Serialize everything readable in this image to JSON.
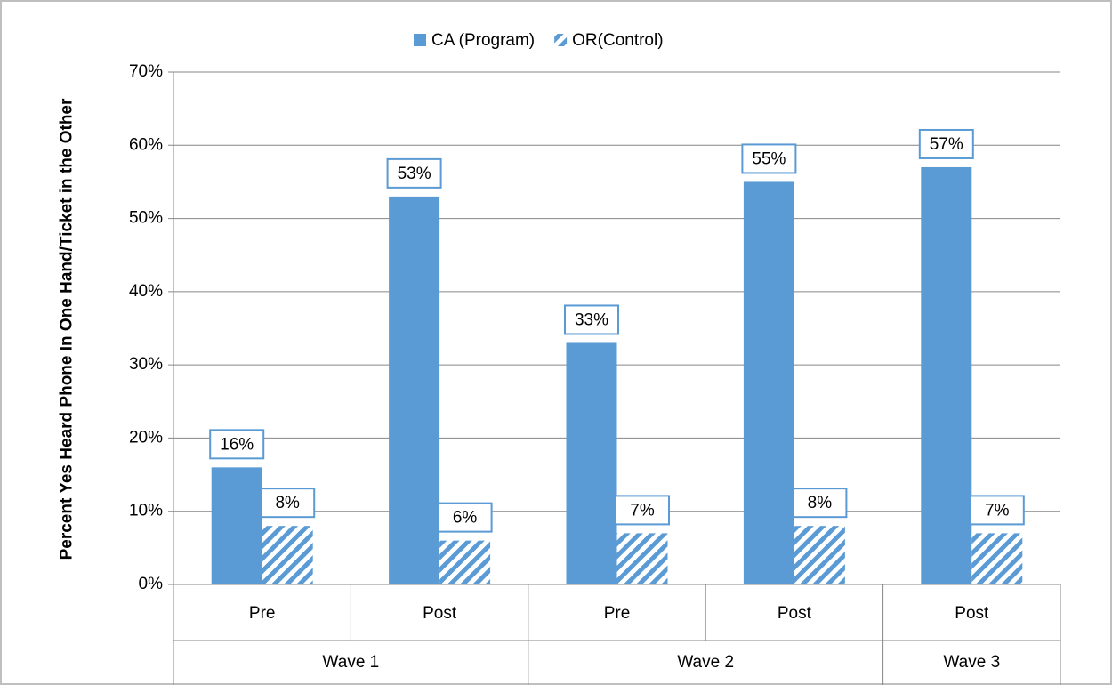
{
  "chart_data": {
    "type": "bar",
    "y_label": "Percent  Yes Heard Phone In One Hand/Ticket in the Other",
    "groups": [
      {
        "name": "Wave 1",
        "categories": [
          "Pre",
          "Post"
        ]
      },
      {
        "name": "Wave 2",
        "categories": [
          "Pre",
          "Post"
        ]
      },
      {
        "name": "Wave 3",
        "categories": [
          "Post"
        ]
      }
    ],
    "series": [
      {
        "name": "CA (Program)",
        "color": "#5b9bd5",
        "hatch": false,
        "values": [
          16,
          53,
          33,
          55,
          57
        ],
        "value_labels": [
          "16%",
          "53%",
          "33%",
          "55%",
          "57%"
        ]
      },
      {
        "name": "OR(Control)",
        "color": "#5b9bd5",
        "hatch": true,
        "values": [
          8,
          6,
          7,
          8,
          7
        ],
        "value_labels": [
          "8%",
          "6%",
          "7%",
          "8%",
          "7%"
        ]
      }
    ],
    "ylim": [
      0,
      70
    ],
    "yticks": [
      {
        "value": 0,
        "label": "0%"
      },
      {
        "value": 10,
        "label": "10%"
      },
      {
        "value": 20,
        "label": "20%"
      },
      {
        "value": 30,
        "label": "30%"
      },
      {
        "value": 40,
        "label": "40%"
      },
      {
        "value": 50,
        "label": "50%"
      },
      {
        "value": 60,
        "label": "60%"
      },
      {
        "value": 70,
        "label": "70%"
      }
    ],
    "grid": true
  }
}
